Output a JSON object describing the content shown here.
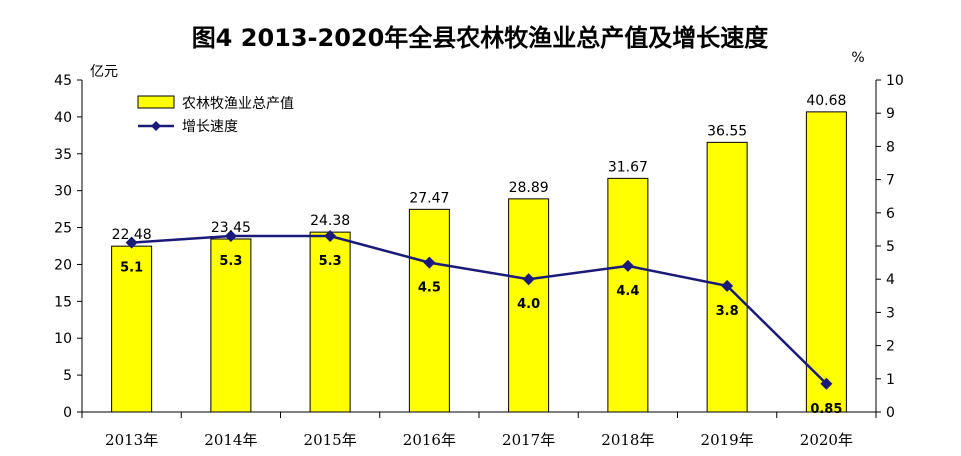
{
  "chart_data": {
    "type": "bar+line",
    "title": "图4 2013-2020年全县农林牧渔业总产值及增长速度",
    "categories": [
      "2013年",
      "2014年",
      "2015年",
      "2016年",
      "2017年",
      "2018年",
      "2019年",
      "2020年"
    ],
    "left_axis": {
      "unit": "亿元",
      "ylim": [
        0,
        45
      ],
      "ticks": [
        "0",
        "5",
        "10",
        "15",
        "20",
        "25",
        "30",
        "35",
        "40",
        "45"
      ]
    },
    "right_axis": {
      "unit": "%",
      "ylim": [
        0,
        10
      ],
      "ticks": [
        "0",
        "1",
        "2",
        "3",
        "4",
        "5",
        "6",
        "7",
        "8",
        "9",
        "10"
      ]
    },
    "series": [
      {
        "name": "农林牧渔业总产值",
        "kind": "bar",
        "axis": "left",
        "color": "#FFFF00",
        "values": [
          22.48,
          23.45,
          24.38,
          27.47,
          28.89,
          31.67,
          36.55,
          40.68
        ],
        "labels": [
          "22.48",
          "23.45",
          "24.38",
          "27.47",
          "28.89",
          "31.67",
          "36.55",
          "40.68"
        ]
      },
      {
        "name": "增长速度",
        "kind": "line",
        "axis": "right",
        "color": "#1A1A7A",
        "values": [
          5.1,
          5.3,
          5.3,
          4.5,
          4.0,
          4.4,
          3.8,
          0.85
        ],
        "labels": [
          "5.1",
          "5.3",
          "5.3",
          "4.5",
          "4.0",
          "4.4",
          "3.8",
          "0.85"
        ]
      }
    ],
    "legend_position": "top-left",
    "grid": false
  }
}
